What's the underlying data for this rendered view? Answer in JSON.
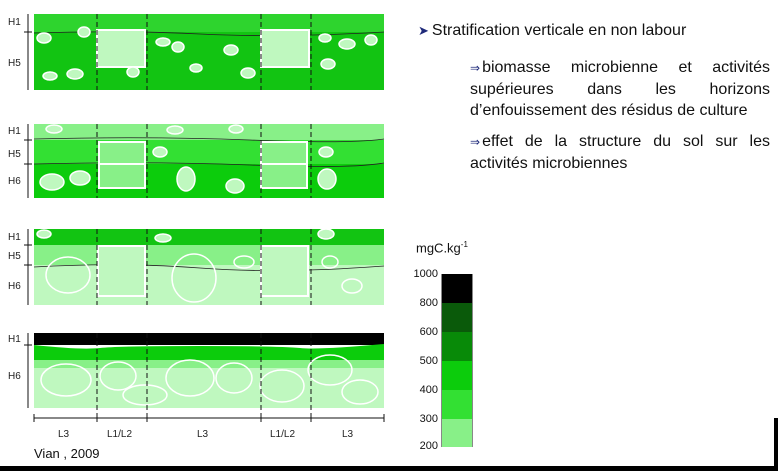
{
  "bullets": {
    "main": "Stratification verticale en non labour",
    "sub1": "biomasse microbienne et activités supérieures dans les horizons d’enfouissement des résidus de culture",
    "sub2": "effet de la structure du sol sur les activités microbiennes"
  },
  "legend": {
    "unit": "mgC.kg",
    "unit_exp": "-1",
    "ticks": [
      "1000",
      "800",
      "600",
      "500",
      "400",
      "300",
      "200"
    ],
    "colors": [
      "#000000",
      "#0a5a0a",
      "#088a08",
      "#0ccc0c",
      "#33e033",
      "#88f088",
      "#bff8bf"
    ]
  },
  "panels": [
    {
      "horizons": [
        "H1",
        "H5"
      ]
    },
    {
      "horizons": [
        "H1",
        "H5",
        "H6"
      ]
    },
    {
      "horizons": [
        "H1",
        "H5",
        "H6"
      ]
    },
    {
      "horizons": [
        "H1",
        "H6"
      ]
    }
  ],
  "layers": [
    "L3",
    "L1/L2",
    "L3",
    "L1/L2",
    "L3"
  ],
  "source": "Vian , 2009"
}
